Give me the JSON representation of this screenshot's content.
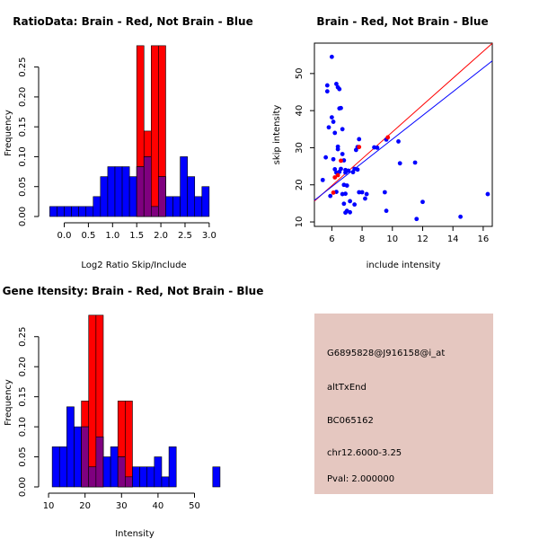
{
  "colors": {
    "red": "#ff0000",
    "blue": "#0000ff",
    "overlap": "#7f007f",
    "info_bg": "#e5c7c0",
    "pval": "#c00000"
  },
  "chart_data": [
    {
      "type": "histogram",
      "title": "RatioData: Brain - Red, Not Brain - Blue",
      "xlabel": "Log2 Ratio Skip/Include",
      "ylabel": "Frequency",
      "xlim": [
        -0.4,
        3.3
      ],
      "ylim": [
        0,
        0.29
      ],
      "x_ticks": [
        "0.0",
        "0.5",
        "1.0",
        "1.5",
        "2.0",
        "2.5",
        "3.0"
      ],
      "x_tick_values": [
        0,
        0.5,
        1,
        1.5,
        2,
        2.5,
        3
      ],
      "y_ticks": [
        "0.00",
        "0.05",
        "0.10",
        "0.15",
        "0.20",
        "0.25"
      ],
      "y_tick_values": [
        0,
        0.05,
        0.1,
        0.15,
        0.2,
        0.25
      ],
      "bin_edges": [
        -0.3,
        -0.15,
        0,
        0.15,
        0.3,
        0.45,
        0.6,
        0.75,
        0.9,
        1.05,
        1.2,
        1.35,
        1.5,
        1.65,
        1.8,
        1.95,
        2.1,
        2.25,
        2.4,
        2.55,
        2.7,
        2.85,
        3.0,
        3.15
      ],
      "series": [
        {
          "name": "Brain",
          "color": "red",
          "values": [
            0,
            0,
            0,
            0,
            0,
            0,
            0,
            0,
            0,
            0,
            0,
            0,
            0.2857,
            0.1429,
            0.2857,
            0.2857,
            0,
            0,
            0,
            0,
            0,
            0,
            0
          ]
        },
        {
          "name": "Not Brain",
          "color": "blue",
          "values": [
            0.0167,
            0.0167,
            0.0167,
            0.0167,
            0.0167,
            0.0167,
            0.0333,
            0.0667,
            0.0833,
            0.0833,
            0.0833,
            0.0667,
            0.0833,
            0.1,
            0.0167,
            0.0667,
            0.0333,
            0.0333,
            0.1,
            0.0667,
            0.0333,
            0.05,
            0
          ]
        }
      ]
    },
    {
      "type": "scatter",
      "title": "Brain - Red, Not Brain - Blue",
      "xlabel": "include intensity",
      "ylabel": "skip intensity",
      "xlim": [
        4.85,
        16.6
      ],
      "ylim": [
        8.8,
        58.2
      ],
      "x_ticks": [
        "6",
        "8",
        "10",
        "12",
        "14",
        "16"
      ],
      "x_tick_values": [
        6,
        8,
        10,
        12,
        14,
        16
      ],
      "y_ticks": [
        "10",
        "20",
        "30",
        "40",
        "50"
      ],
      "y_tick_values": [
        10,
        20,
        30,
        40,
        50
      ],
      "series": [
        {
          "name": "Not Brain",
          "color": "blue",
          "x": [
            5.7,
            5.7,
            6.0,
            6.0,
            6.3,
            6.4,
            6.5,
            6.6,
            6.5,
            6.7,
            6.2,
            6.1,
            6.4,
            6.4,
            6.7,
            6.8,
            6.9,
            6.6,
            6.5,
            5.8,
            5.6,
            6.1,
            6.2,
            6.9,
            7.1,
            6.8,
            7.0,
            6.9,
            7.7,
            7.8,
            7.6,
            7.4,
            7.5,
            7.7,
            7.8,
            8.3,
            8.2,
            8.8,
            9.0,
            9.6,
            10.5,
            11.5,
            9.5,
            9.6,
            10.4,
            11.6,
            12.0,
            14.5,
            16.3,
            7.2,
            7.5,
            8.0,
            7.0,
            6.9,
            6.7,
            6.3,
            5.9,
            5.4,
            6.3,
            6.8,
            7.2
          ],
          "y": [
            46.8,
            45.2,
            54.5,
            38.2,
            47.2,
            46.3,
            45.8,
            40.7,
            40.6,
            35.0,
            34.0,
            37.0,
            30.3,
            29.6,
            28.3,
            26.6,
            24.0,
            24.3,
            23.5,
            35.5,
            27.4,
            26.9,
            24.2,
            23.3,
            23.8,
            20.0,
            19.8,
            17.6,
            30.2,
            32.3,
            29.4,
            23.4,
            24.3,
            24.1,
            18.0,
            17.5,
            16.3,
            30.1,
            30.0,
            32.2,
            25.8,
            26.0,
            18.0,
            13.0,
            31.7,
            10.8,
            15.4,
            11.4,
            17.5,
            12.6,
            14.7,
            18.0,
            13.0,
            12.5,
            17.5,
            18.1,
            17.0,
            21.3,
            23.3,
            14.9,
            15.6
          ]
        },
        {
          "name": "Brain",
          "color": "red",
          "x": [
            6.1,
            6.2,
            6.4,
            7.8,
            9.7,
            6.6
          ],
          "y": [
            17.9,
            22.0,
            22.6,
            30.2,
            32.8,
            26.5
          ]
        }
      ],
      "fit_lines": [
        {
          "color": "red",
          "intercept": -1.95,
          "slope": 3.62
        },
        {
          "color": "blue",
          "intercept": 0.3,
          "slope": 3.2
        }
      ]
    },
    {
      "type": "histogram",
      "title": "Gene Itensity: Brain - Red, Not Brain - Blue",
      "xlabel": "Intensity",
      "ylabel": "Frequency",
      "xlim": [
        9,
        58
      ],
      "ylim": [
        0,
        0.29
      ],
      "x_ticks": [
        "10",
        "20",
        "30",
        "40",
        "50"
      ],
      "x_tick_values": [
        10,
        20,
        30,
        40,
        50
      ],
      "y_ticks": [
        "0.00",
        "0.05",
        "0.10",
        "0.15",
        "0.20",
        "0.25"
      ],
      "y_tick_values": [
        0,
        0.05,
        0.1,
        0.15,
        0.2,
        0.25
      ],
      "bin_edges": [
        11,
        13,
        15,
        17,
        19,
        21,
        23,
        25,
        27,
        29,
        31,
        33,
        35,
        37,
        39,
        41,
        43,
        45,
        47,
        49,
        51,
        53,
        55,
        57
      ],
      "series": [
        {
          "name": "Brain",
          "color": "red",
          "values": [
            0,
            0,
            0,
            0,
            0.1429,
            0.2857,
            0.2857,
            0,
            0,
            0.1429,
            0.1429,
            0,
            0,
            0,
            0,
            0,
            0,
            0,
            0,
            0,
            0,
            0,
            0
          ]
        },
        {
          "name": "Not Brain",
          "color": "blue",
          "values": [
            0.0667,
            0.0667,
            0.1333,
            0.1,
            0.1,
            0.0333,
            0.0833,
            0.05,
            0.0667,
            0.05,
            0.0167,
            0.0333,
            0.0333,
            0.0333,
            0.05,
            0.0167,
            0.0667,
            0,
            0,
            0,
            0,
            0,
            0.0333
          ]
        }
      ]
    }
  ],
  "info_panel": {
    "probe_id": "G6895828@J916158@i_at",
    "event_type": "altTxEnd",
    "accession": "BC065162",
    "location": "chr12.6000-3.25",
    "pval": "Pval: 2.000000"
  }
}
